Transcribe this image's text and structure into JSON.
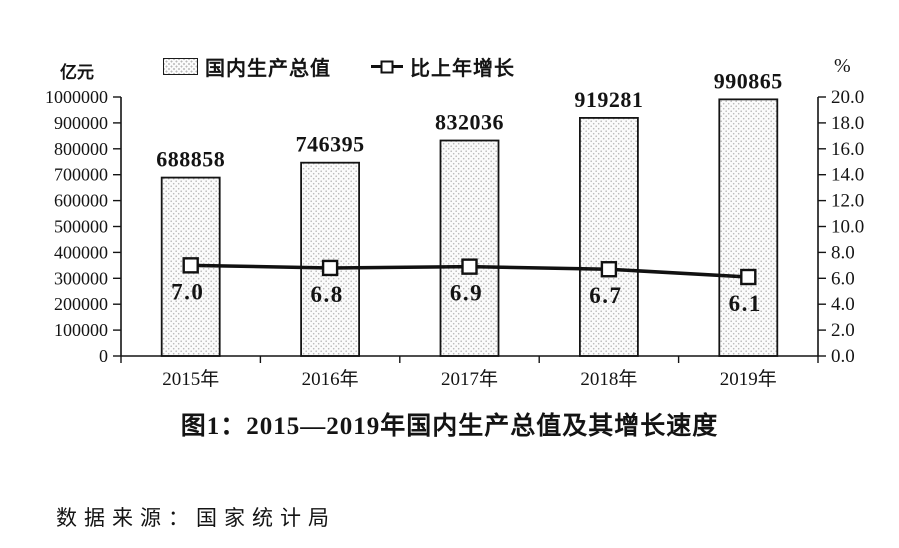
{
  "title": "图1：2015—2019年国内生产总值及其增长速度",
  "source": "数据来源：国家统计局",
  "legend": [
    {
      "label": "国内生产总值",
      "symbol": "hatched-bar-swatch"
    },
    {
      "label": "比上年增长",
      "symbol": "line-with-square-marker"
    }
  ],
  "chart_data": {
    "type": "combo",
    "categories": [
      "2015年",
      "2016年",
      "2017年",
      "2018年",
      "2019年"
    ],
    "series": [
      {
        "name": "国内生产总值",
        "type": "bar",
        "axis": "left",
        "values": [
          688858,
          746395,
          832036,
          919281,
          990865
        ]
      },
      {
        "name": "比上年增长",
        "type": "line",
        "axis": "right",
        "values": [
          7.0,
          6.8,
          6.9,
          6.7,
          6.1
        ]
      }
    ],
    "left_axis": {
      "unit": "亿元",
      "min": 0,
      "max": 1000000,
      "step": 100000
    },
    "right_axis": {
      "unit": "%",
      "min": 0,
      "max": 20,
      "step": 2,
      "decimals": 1
    },
    "grid": false,
    "legend_position": "top",
    "colors": {
      "ink": "#141414",
      "bar_fill_base": "#fbfbfb",
      "bar_dot": "#b9b9b9",
      "marker_fill": "#ffffff"
    }
  }
}
